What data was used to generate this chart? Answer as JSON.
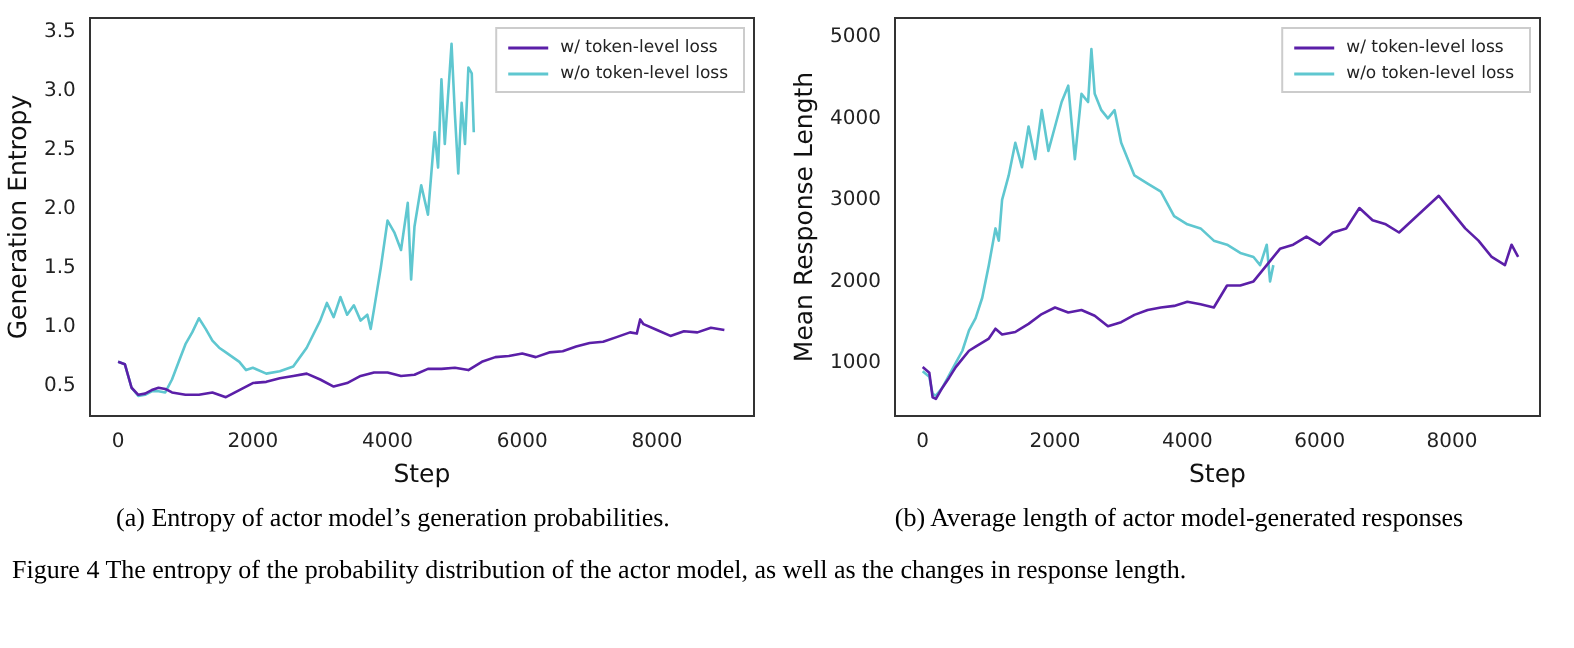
{
  "chart_data": [
    {
      "type": "line",
      "xlabel": "Step",
      "ylabel": "Generation Entropy",
      "xlim": [
        -420,
        9440
      ],
      "ylim": [
        0.24,
        3.62
      ],
      "xticks": [
        0,
        2000,
        4000,
        6000,
        8000
      ],
      "yticks": [
        0.5,
        {
          "value": 1,
          "label": "1.0"
        },
        1.5,
        {
          "value": 2,
          "label": "2.0"
        },
        2.5,
        {
          "value": 3,
          "label": "3.0"
        },
        3.5
      ],
      "grid": false,
      "legend": "top right",
      "marker": "none",
      "line_style": "solid",
      "annotations": [
        "(a) Entropy of actor model’s generation probabilities.",
        "Figure 4 The entropy of the probability distribution of the actor model, as well as the changes in response length."
      ],
      "series": [
        {
          "name": "w/ token-level loss",
          "color": "#5b1fa8",
          "x": [
            0,
            100,
            200,
            300,
            400,
            500,
            600,
            700,
            800,
            1000,
            1200,
            1400,
            1600,
            1800,
            2000,
            2200,
            2400,
            2600,
            2800,
            3000,
            3200,
            3400,
            3600,
            3800,
            4000,
            4200,
            4400,
            4600,
            4800,
            5000,
            5200,
            5400,
            5600,
            5800,
            6000,
            6200,
            6400,
            6600,
            6800,
            7000,
            7200,
            7400,
            7600,
            7700,
            7750,
            7800,
            8000,
            8200,
            8400,
            8600,
            8800,
            9000
          ],
          "values": [
            0.7,
            0.68,
            0.48,
            0.42,
            0.43,
            0.46,
            0.48,
            0.47,
            0.44,
            0.42,
            0.42,
            0.44,
            0.4,
            0.46,
            0.52,
            0.53,
            0.56,
            0.58,
            0.6,
            0.55,
            0.49,
            0.52,
            0.58,
            0.61,
            0.61,
            0.58,
            0.59,
            0.64,
            0.64,
            0.65,
            0.63,
            0.7,
            0.74,
            0.75,
            0.77,
            0.74,
            0.78,
            0.79,
            0.83,
            0.86,
            0.87,
            0.91,
            0.95,
            0.94,
            1.06,
            1.02,
            0.97,
            0.92,
            0.96,
            0.95,
            0.99,
            0.97
          ]
        },
        {
          "name": "w/o token-level loss",
          "color": "#5fc7d0",
          "x": [
            0,
            100,
            200,
            300,
            400,
            500,
            600,
            700,
            800,
            900,
            1000,
            1100,
            1200,
            1300,
            1400,
            1500,
            1600,
            1800,
            1900,
            2000,
            2200,
            2400,
            2600,
            2800,
            3000,
            3100,
            3200,
            3300,
            3400,
            3500,
            3600,
            3700,
            3750,
            3800,
            3900,
            4000,
            4100,
            4200,
            4300,
            4350,
            4400,
            4500,
            4600,
            4700,
            4750,
            4800,
            4850,
            4950,
            5000,
            5050,
            5100,
            5150,
            5200,
            5250,
            5280
          ],
          "values": [
            0.7,
            0.68,
            0.48,
            0.41,
            0.42,
            0.45,
            0.45,
            0.44,
            0.55,
            0.7,
            0.85,
            0.95,
            1.07,
            0.98,
            0.88,
            0.82,
            0.78,
            0.7,
            0.63,
            0.65,
            0.6,
            0.62,
            0.66,
            0.82,
            1.05,
            1.2,
            1.08,
            1.25,
            1.1,
            1.18,
            1.05,
            1.1,
            0.98,
            1.15,
            1.5,
            1.9,
            1.8,
            1.65,
            2.05,
            1.4,
            1.85,
            2.2,
            1.95,
            2.65,
            2.35,
            3.1,
            2.55,
            3.4,
            2.8,
            2.3,
            2.9,
            2.55,
            3.2,
            3.15,
            2.65
          ]
        }
      ]
    },
    {
      "type": "line",
      "xlabel": "Step",
      "ylabel": "Mean Response Length",
      "xlim": [
        -420,
        9330
      ],
      "ylim": [
        350,
        5230
      ],
      "xticks": [
        0,
        2000,
        4000,
        6000,
        8000
      ],
      "yticks": [
        1000,
        2000,
        3000,
        4000,
        5000
      ],
      "grid": false,
      "legend": "top right",
      "marker": "none",
      "line_style": "solid",
      "annotations": [
        "(b) Average length of actor model-generated responses"
      ],
      "series": [
        {
          "name": "w/ token-level loss",
          "color": "#5b1fa8",
          "x": [
            0,
            100,
            150,
            200,
            300,
            400,
            500,
            600,
            700,
            800,
            1000,
            1100,
            1200,
            1400,
            1600,
            1800,
            2000,
            2200,
            2400,
            2600,
            2800,
            3000,
            3200,
            3400,
            3600,
            3800,
            4000,
            4200,
            4400,
            4600,
            4800,
            5000,
            5200,
            5400,
            5600,
            5800,
            6000,
            6200,
            6400,
            6600,
            6800,
            7000,
            7200,
            7400,
            7600,
            7800,
            8000,
            8200,
            8400,
            8600,
            8800,
            8900,
            9000
          ],
          "values": [
            950,
            880,
            580,
            560,
            700,
            820,
            950,
            1050,
            1150,
            1200,
            1300,
            1420,
            1350,
            1380,
            1480,
            1600,
            1680,
            1620,
            1650,
            1580,
            1450,
            1500,
            1590,
            1650,
            1680,
            1700,
            1750,
            1720,
            1680,
            1950,
            1950,
            2000,
            2200,
            2400,
            2450,
            2550,
            2450,
            2600,
            2650,
            2900,
            2750,
            2700,
            2600,
            2750,
            2900,
            3050,
            2850,
            2650,
            2500,
            2300,
            2200,
            2450,
            2300
          ]
        },
        {
          "name": "w/o token-level loss",
          "color": "#5fc7d0",
          "x": [
            0,
            100,
            150,
            200,
            300,
            400,
            500,
            600,
            700,
            800,
            900,
            1000,
            1100,
            1150,
            1200,
            1300,
            1400,
            1500,
            1600,
            1700,
            1800,
            1900,
            2000,
            2100,
            2200,
            2300,
            2400,
            2500,
            2550,
            2600,
            2700,
            2800,
            2900,
            3000,
            3200,
            3400,
            3600,
            3800,
            4000,
            4200,
            4400,
            4600,
            4800,
            5000,
            5100,
            5200,
            5250,
            5300
          ],
          "values": [
            900,
            830,
            620,
            600,
            700,
            850,
            1000,
            1150,
            1400,
            1550,
            1800,
            2200,
            2650,
            2500,
            3000,
            3300,
            3700,
            3400,
            3900,
            3500,
            4100,
            3600,
            3900,
            4200,
            4400,
            3500,
            4300,
            4200,
            4850,
            4300,
            4100,
            4000,
            4100,
            3700,
            3300,
            3200,
            3100,
            2800,
            2700,
            2650,
            2500,
            2450,
            2350,
            2300,
            2200,
            2450,
            2000,
            2200
          ]
        }
      ]
    }
  ]
}
